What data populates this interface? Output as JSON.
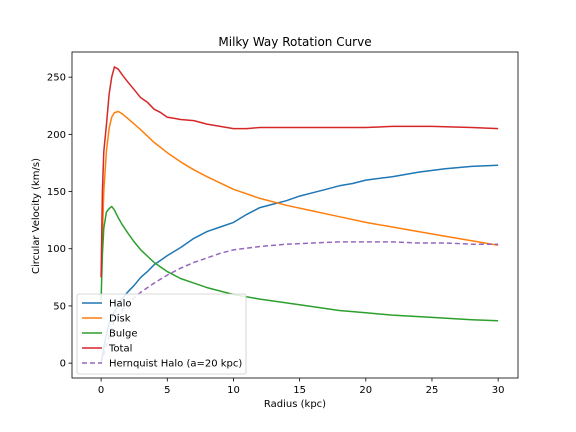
{
  "chart_data": {
    "type": "line",
    "title": "Milky Way Rotation Curve",
    "xlabel": "Radius (kpc)",
    "ylabel": "Circular Velocity (km/s)",
    "xlim": [
      -2.2,
      31.5
    ],
    "ylim": [
      -13,
      272
    ],
    "xticks": [
      0,
      5,
      10,
      15,
      20,
      25,
      30
    ],
    "yticks": [
      0,
      50,
      100,
      150,
      200,
      250
    ],
    "grid": false,
    "legend_position": "lower-left",
    "series": [
      {
        "name": "Halo",
        "color": "#1f77b4",
        "dashed": false,
        "x": [
          0,
          0.3,
          0.6,
          1,
          1.5,
          2,
          2.5,
          3,
          3.5,
          4,
          4.5,
          5,
          6,
          7,
          8,
          9,
          10,
          11,
          12,
          13,
          14,
          15,
          16,
          17,
          18,
          19,
          20,
          22,
          24,
          26,
          28,
          30
        ],
        "y": [
          0,
          20,
          35,
          45,
          55,
          62,
          68,
          75,
          80,
          86,
          90,
          94,
          101,
          109,
          115,
          119,
          123,
          130,
          136,
          139,
          142,
          146,
          149,
          152,
          155,
          157,
          160,
          163,
          167,
          170,
          172,
          173
        ]
      },
      {
        "name": "Disk",
        "color": "#ff7f0e",
        "dashed": false,
        "x": [
          0,
          0.2,
          0.4,
          0.6,
          0.8,
          1.0,
          1.3,
          1.6,
          2,
          3,
          4,
          5,
          6,
          7,
          8,
          10,
          12,
          14,
          16,
          18,
          20,
          22,
          24,
          26,
          28,
          30
        ],
        "y": [
          75,
          150,
          185,
          205,
          215,
          219,
          220,
          218,
          214,
          204,
          193,
          184,
          176,
          169,
          163,
          152,
          144,
          138,
          133,
          128,
          123,
          119,
          115,
          111,
          107,
          103
        ]
      },
      {
        "name": "Bulge",
        "color": "#2ca02c",
        "dashed": false,
        "x": [
          0,
          0.1,
          0.2,
          0.4,
          0.6,
          0.8,
          1.0,
          1.3,
          1.6,
          2,
          2.5,
          3,
          4,
          5,
          6,
          7,
          8,
          10,
          12,
          15,
          18,
          20,
          22,
          25,
          28,
          30
        ],
        "y": [
          55,
          95,
          118,
          132,
          135,
          137,
          134,
          127,
          121,
          114,
          106,
          99,
          88,
          80,
          74,
          70,
          66,
          60,
          56,
          51,
          46,
          44,
          42,
          40,
          38,
          37
        ]
      },
      {
        "name": "Total",
        "color": "#d62728",
        "dashed": false,
        "x": [
          0,
          0.1,
          0.2,
          0.4,
          0.6,
          0.8,
          1.0,
          1.3,
          1.6,
          2,
          2.5,
          3,
          3.5,
          4,
          4.5,
          5,
          5.5,
          6,
          7,
          8,
          9,
          10,
          11,
          12,
          14,
          16,
          18,
          20,
          22,
          25,
          28,
          30
        ],
        "y": [
          75,
          150,
          185,
          208,
          235,
          250,
          259,
          257,
          252,
          246,
          239,
          232,
          228,
          222,
          219,
          215,
          214,
          213,
          212,
          209,
          207,
          205,
          205,
          206,
          206,
          206,
          206,
          206,
          207,
          207,
          206,
          205
        ]
      },
      {
        "name": "Hernquist Halo (a=20 kpc)",
        "color": "#9467bd",
        "dashed": true,
        "x": [
          0,
          1,
          2,
          3,
          4,
          5,
          6,
          7,
          8,
          9,
          10,
          12,
          14,
          16,
          18,
          20,
          22,
          24,
          26,
          28,
          30
        ],
        "y": [
          0,
          38,
          52,
          62,
          70,
          77,
          83,
          88,
          92,
          96,
          99,
          102,
          104,
          105,
          106,
          106,
          106,
          105,
          105,
          104,
          104
        ]
      }
    ]
  }
}
